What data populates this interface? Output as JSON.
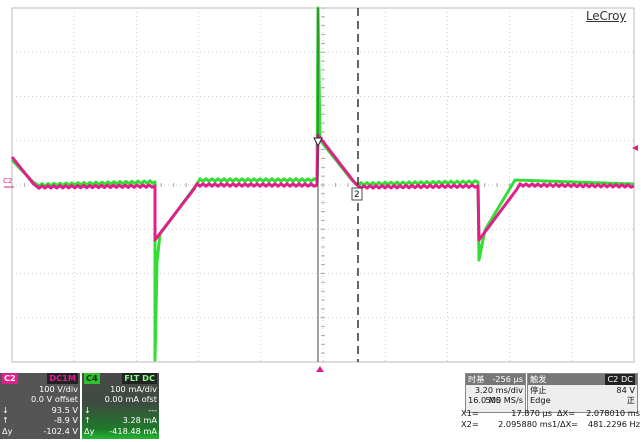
{
  "brand": "LeCroy",
  "ground_marker": "C2",
  "cursor_marker_label": "2",
  "channel_c2": {
    "name": "C2",
    "mode": "DC1M",
    "vdiv": "100 V/div",
    "offset": "0.0 V offset",
    "row_down": {
      "sym": "↓",
      "val": "93.5 V"
    },
    "row_up": {
      "sym": "↑",
      "val": "-8.9 V"
    },
    "row_dy": {
      "sym": "Δy",
      "val": "-102.4 V"
    },
    "color": "#e0208a"
  },
  "channel_c4": {
    "name": "C4",
    "mode": "FLT DC",
    "vdiv": "100 mA/div",
    "offset": "0.00 mA ofst",
    "row_down": {
      "sym": "↓",
      "val": "---"
    },
    "row_up": {
      "sym": "↑",
      "val": "3.28 mA"
    },
    "row_dy": {
      "sym": "Δy",
      "val": "-418.48 mA"
    },
    "color": "#33dd33"
  },
  "timebase": {
    "label": "时基",
    "delay": "-256 µs",
    "tdiv": "3.20 ms/div",
    "samples": "16.0 MS",
    "rate": "500 MS/s"
  },
  "trigger": {
    "label": "触发",
    "source": "C2 DC",
    "state": "停止",
    "level": "84 V",
    "type": "Edge",
    "slope": "正"
  },
  "cursors": {
    "x1_label": "X1=",
    "x1_value": "17.870 µs",
    "dx_label": "ΔX=",
    "dx_value": "2.078010 ms",
    "x2_label": "X2=",
    "x2_value": "2.095880 ms",
    "inv_label": "1/ΔX=",
    "inv_value": "481.2296 Hz"
  }
}
